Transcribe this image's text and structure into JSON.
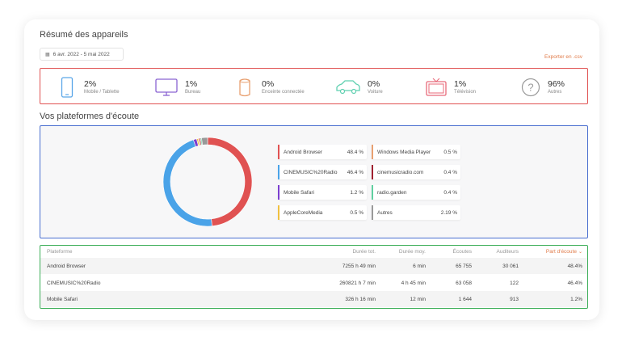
{
  "header": {
    "title": "Résumé des appareils",
    "date_range": "6 avr. 2022 - 5 mai 2022",
    "export_label": "Exporter en .csv"
  },
  "devices": [
    {
      "pct": "2%",
      "label": "Mobile / Tablette",
      "icon": "mobile-icon",
      "color": "#5aa6e8"
    },
    {
      "pct": "1%",
      "label": "Bureau",
      "icon": "desktop-icon",
      "color": "#8a63d2"
    },
    {
      "pct": "0%",
      "label": "Enceinte connectée",
      "icon": "speaker-icon",
      "color": "#e8a070"
    },
    {
      "pct": "0%",
      "label": "Voiture",
      "icon": "car-icon",
      "color": "#5fd0b0"
    },
    {
      "pct": "1%",
      "label": "Télévision",
      "icon": "tv-icon",
      "color": "#e86a7a"
    },
    {
      "pct": "96%",
      "label": "Autres",
      "icon": "question-icon",
      "color": "#999999"
    }
  ],
  "platforms_title": "Vos plateformes d'écoute",
  "legend": [
    {
      "name": "Android Browser",
      "val": "48.4 %",
      "color": "#e05252"
    },
    {
      "name": "CINEMUSIC%20Radio",
      "val": "46.4 %",
      "color": "#4aa3e8"
    },
    {
      "name": "Mobile Safari",
      "val": "1.2 %",
      "color": "#7b3fd0"
    },
    {
      "name": "AppleCoreMedia",
      "val": "0.5 %",
      "color": "#f0c040"
    },
    {
      "name": "Windows Media Player",
      "val": "0.5 %",
      "color": "#e8a070"
    },
    {
      "name": "cinemusicradio.com",
      "val": "0.4 %",
      "color": "#a02030"
    },
    {
      "name": "radio.garden",
      "val": "0.4 %",
      "color": "#5fd0a0"
    },
    {
      "name": "Autres",
      "val": "2.19 %",
      "color": "#999999"
    }
  ],
  "chart_data": {
    "type": "pie",
    "categories": [
      "Android Browser",
      "CINEMUSIC%20Radio",
      "Mobile Safari",
      "AppleCoreMedia",
      "Windows Media Player",
      "cinemusicradio.com",
      "radio.garden",
      "Autres"
    ],
    "values": [
      48.4,
      46.4,
      1.2,
      0.5,
      0.5,
      0.4,
      0.4,
      2.19
    ],
    "colors": [
      "#e05252",
      "#4aa3e8",
      "#7b3fd0",
      "#f0c040",
      "#e8a070",
      "#a02030",
      "#5fd0a0",
      "#999999"
    ],
    "title": ""
  },
  "table": {
    "headers": [
      "Plateforme",
      "Durée tot.",
      "Durée moy.",
      "Écoutes",
      "Auditeurs",
      "Part d'écoute"
    ],
    "rows": [
      [
        "Android Browser",
        "7255 h 49 min",
        "6 min",
        "65 755",
        "30 061",
        "48.4%"
      ],
      [
        "CINEMUSIC%20Radio",
        "260821 h 7 min",
        "4 h 45 min",
        "63 058",
        "122",
        "46.4%"
      ],
      [
        "Mobile Safari",
        "326 h 16 min",
        "12 min",
        "1 644",
        "913",
        "1.2%"
      ]
    ]
  }
}
